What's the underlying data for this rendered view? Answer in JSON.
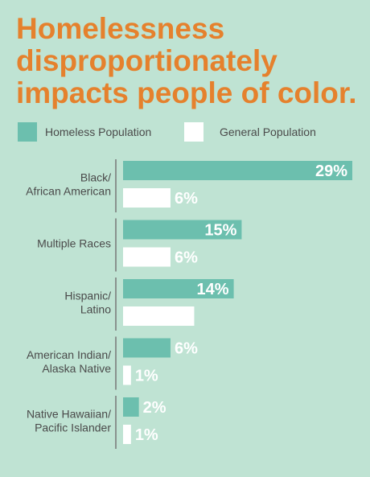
{
  "title_lines": [
    "Homelessness",
    "disproportionately",
    "impacts people of color."
  ],
  "colors": {
    "background": "#bfe3d3",
    "title": "#e5812d",
    "homeless": "#6cbfae",
    "general": "#ffffff",
    "label": "#4a4a4a",
    "divider": "#777777"
  },
  "legend": [
    {
      "name": "Homeless Population",
      "color": "#6cbfae"
    },
    {
      "name": "General Population",
      "color": "#ffffff"
    }
  ],
  "chart_data": {
    "type": "bar",
    "orientation": "horizontal",
    "categories": [
      [
        "Black/",
        "African American"
      ],
      [
        "Multiple Races"
      ],
      [
        "Hispanic/",
        "Latino"
      ],
      [
        "American Indian/",
        "Alaska Native"
      ],
      [
        "Native Hawaiian/",
        "Pacific Islander"
      ]
    ],
    "series": [
      {
        "name": "Homeless Population",
        "values": [
          29,
          15,
          14,
          6,
          2
        ],
        "labels": [
          "29%",
          "15%",
          "14%",
          "6%",
          "2%"
        ],
        "color": "#6cbfae"
      },
      {
        "name": "General Population",
        "values": [
          6,
          6,
          9,
          1,
          1
        ],
        "labels": [
          "6%",
          "6%",
          "9%",
          "1%",
          "1%"
        ],
        "color": "#ffffff"
      }
    ],
    "unit": "%",
    "legend_position": "top",
    "grid": false
  }
}
